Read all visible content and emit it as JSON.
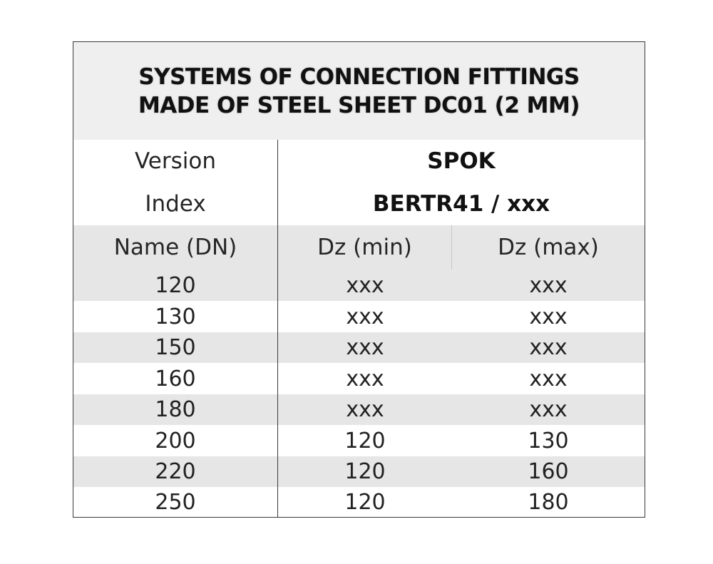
{
  "title": {
    "line1": "SYSTEMS OF CONNECTION FITTINGS",
    "line2": "MADE OF STEEL SHEET DC01 (2 MM)"
  },
  "version": {
    "label": "Version",
    "value": "SPOK"
  },
  "index": {
    "label": "Index",
    "value": "BERTR41 / xxx"
  },
  "columns": [
    "Name (DN)",
    "Dz (min)",
    "Dz (max)"
  ],
  "rows": [
    [
      "120",
      "xxx",
      "xxx"
    ],
    [
      "130",
      "xxx",
      "xxx"
    ],
    [
      "150",
      "xxx",
      "xxx"
    ],
    [
      "160",
      "xxx",
      "xxx"
    ],
    [
      "180",
      "xxx",
      "xxx"
    ],
    [
      "200",
      "120",
      "130"
    ],
    [
      "220",
      "120",
      "160"
    ],
    [
      "250",
      "120",
      "180"
    ]
  ]
}
